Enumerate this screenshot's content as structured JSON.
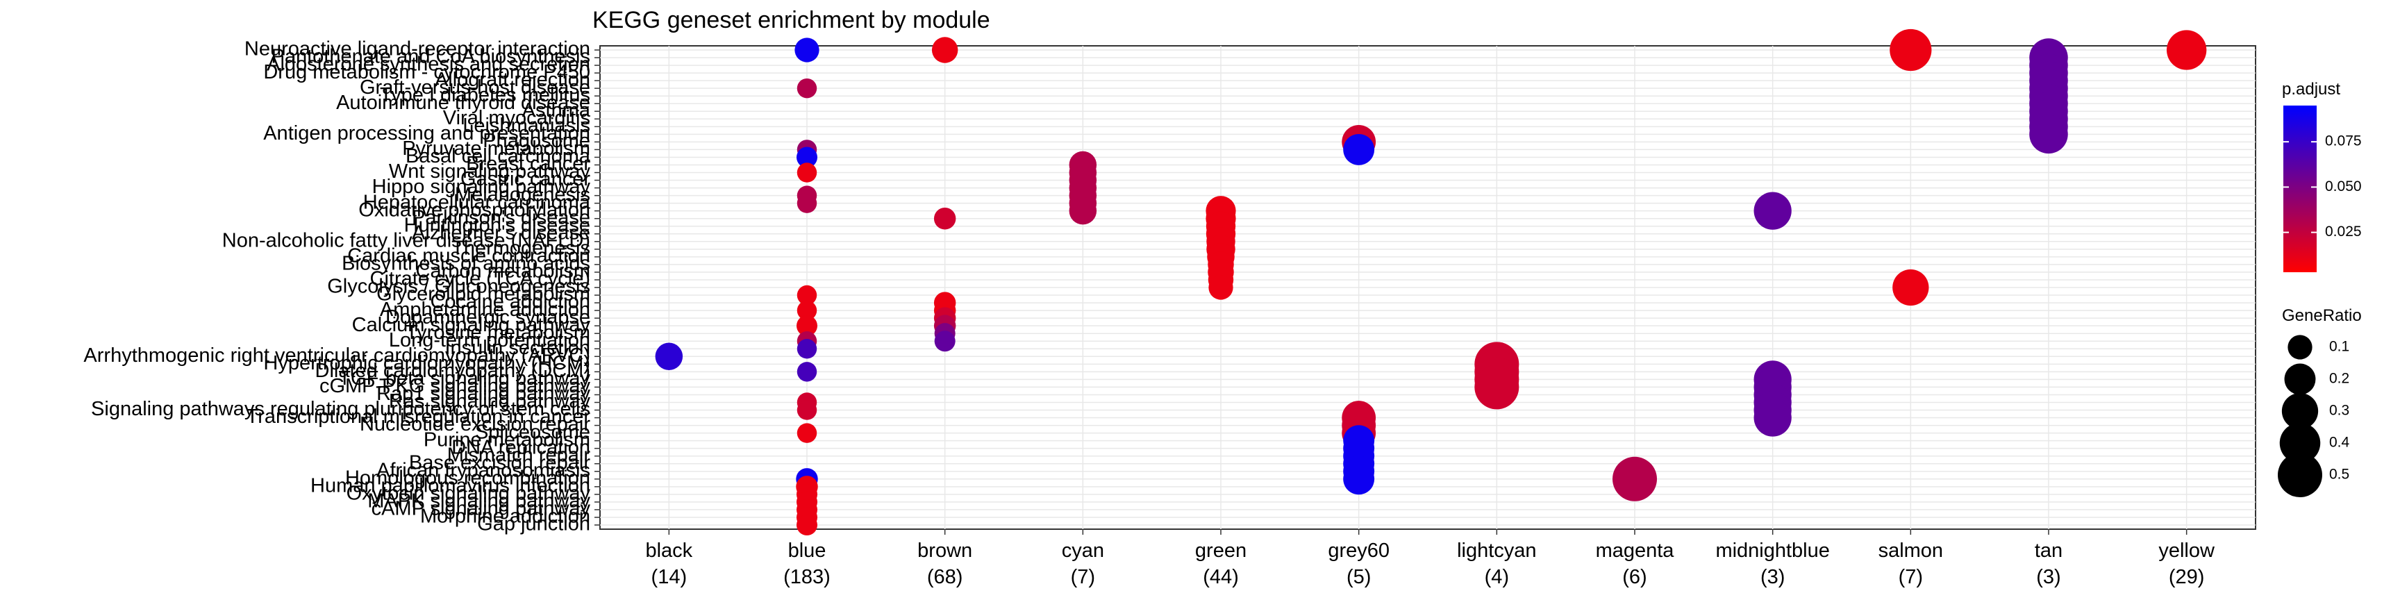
{
  "chart_data": {
    "type": "scatter",
    "title": "KEGG geneset enrichment by module",
    "xlabel": "",
    "ylabel": "",
    "x_categories": [
      {
        "name": "black",
        "count": "(14)"
      },
      {
        "name": "blue",
        "count": "(183)"
      },
      {
        "name": "brown",
        "count": "(68)"
      },
      {
        "name": "cyan",
        "count": "(7)"
      },
      {
        "name": "green",
        "count": "(44)"
      },
      {
        "name": "grey60",
        "count": "(5)"
      },
      {
        "name": "lightcyan",
        "count": "(4)"
      },
      {
        "name": "magenta",
        "count": "(6)"
      },
      {
        "name": "midnightblue",
        "count": "(3)"
      },
      {
        "name": "salmon",
        "count": "(7)"
      },
      {
        "name": "tan",
        "count": "(3)"
      },
      {
        "name": "yellow",
        "count": "(29)"
      }
    ],
    "y_categories": [
      "Neuroactive ligand-receptor interaction",
      "Pantothenate and CoA biosynthesis",
      "Aldosterone synthesis and secretion",
      "Drug metabolism - cytochrome P450",
      "Allograft rejection",
      "Graft-versus-host disease",
      "Type I diabetes mellitus",
      "Autoimmune thyroid disease",
      "Asthma",
      "Viral myocarditis",
      "Leishmaniasis",
      "Antigen processing and presentation",
      "Phagosome",
      "Pyruvate metabolism",
      "Basal cell carcinoma",
      "Breast cancer",
      "Wnt signaling pathway",
      "Gastric cancer",
      "Hippo signaling pathway",
      "Melanogenesis",
      "Hepatocellular carcinoma",
      "Oxidative phosphorylation",
      "Parkinson's disease",
      "Huntington's disease",
      "Alzheimer's disease",
      "Non-alcoholic fatty liver disease (NAFLD)",
      "Thermogenesis",
      "Cardiac muscle contraction",
      "Biosynthesis of amino acids",
      "Carbon metabolism",
      "Citrate cycle (TCA cycle)",
      "Glycolysis / Gluconeogenesis",
      "Glycerolipid metabolism",
      "Cocaine addiction",
      "Amphetamine addiction",
      "Dopaminergic synapse",
      "Calcium signaling pathway",
      "Tyrosine metabolism",
      "Long-term potentiation",
      "Insulin secretion",
      "Arrhythmogenic right ventricular cardiomyopathy (ARVC)",
      "Hypertrophic cardiomyopathy (HCM)",
      "Dilated cardiomyopathy (DCM)",
      "TGF-beta signaling pathway",
      "cGMP-PKG signaling pathway",
      "Rap1 signaling pathway",
      "Ras signaling pathway",
      "Signaling pathways regulating pluripotency of stem cells",
      "Transcriptional misregulation in cancer",
      "Nucleotide excision repair",
      "Spliceosome",
      "Purine metabolism",
      "DNA replication",
      "Mismatch repair",
      "Base excision repair",
      "African trypanosomiasis",
      "Homologous recombination",
      "Human papillomavirus infection",
      "Oxytocin signaling pathway",
      "MAPK signaling pathway",
      "cAMP signaling pathway",
      "Morphine addiction",
      "Gap junction"
    ],
    "points": [
      {
        "module": "blue",
        "term": 0,
        "gene_ratio": 0.1,
        "p_adjust": 0.09
      },
      {
        "module": "blue",
        "term": 5,
        "gene_ratio": 0.05,
        "p_adjust": 0.03
      },
      {
        "module": "blue",
        "term": 13,
        "gene_ratio": 0.05,
        "p_adjust": 0.04
      },
      {
        "module": "blue",
        "term": 14,
        "gene_ratio": 0.06,
        "p_adjust": 0.09
      },
      {
        "module": "blue",
        "term": 16,
        "gene_ratio": 0.05,
        "p_adjust": 0.01
      },
      {
        "module": "blue",
        "term": 19,
        "gene_ratio": 0.05,
        "p_adjust": 0.03
      },
      {
        "module": "blue",
        "term": 20,
        "gene_ratio": 0.05,
        "p_adjust": 0.03
      },
      {
        "module": "blue",
        "term": 32,
        "gene_ratio": 0.05,
        "p_adjust": 0.01
      },
      {
        "module": "blue",
        "term": 34,
        "gene_ratio": 0.05,
        "p_adjust": 0.01
      },
      {
        "module": "blue",
        "term": 36,
        "gene_ratio": 0.06,
        "p_adjust": 0.01
      },
      {
        "module": "blue",
        "term": 38,
        "gene_ratio": 0.05,
        "p_adjust": 0.03
      },
      {
        "module": "blue",
        "term": 39,
        "gene_ratio": 0.05,
        "p_adjust": 0.07
      },
      {
        "module": "blue",
        "term": 42,
        "gene_ratio": 0.05,
        "p_adjust": 0.07
      },
      {
        "module": "blue",
        "term": 46,
        "gene_ratio": 0.05,
        "p_adjust": 0.02
      },
      {
        "module": "blue",
        "term": 47,
        "gene_ratio": 0.05,
        "p_adjust": 0.02
      },
      {
        "module": "blue",
        "term": 50,
        "gene_ratio": 0.05,
        "p_adjust": 0.01
      },
      {
        "module": "blue",
        "term": 56,
        "gene_ratio": 0.07,
        "p_adjust": 0.09
      },
      {
        "module": "blue",
        "term": 57,
        "gene_ratio": 0.07,
        "p_adjust": 0.01
      },
      {
        "module": "blue",
        "term": 58,
        "gene_ratio": 0.06,
        "p_adjust": 0.01
      },
      {
        "module": "blue",
        "term": 59,
        "gene_ratio": 0.06,
        "p_adjust": 0.01
      },
      {
        "module": "blue",
        "term": 60,
        "gene_ratio": 0.06,
        "p_adjust": 0.01
      },
      {
        "module": "blue",
        "term": 61,
        "gene_ratio": 0.06,
        "p_adjust": 0.01
      },
      {
        "module": "blue",
        "term": 62,
        "gene_ratio": 0.06,
        "p_adjust": 0.01
      },
      {
        "module": "black",
        "term": 40,
        "gene_ratio": 0.14,
        "p_adjust": 0.08
      },
      {
        "module": "brown",
        "term": 0,
        "gene_ratio": 0.12,
        "p_adjust": 0.01
      },
      {
        "module": "brown",
        "term": 22,
        "gene_ratio": 0.07,
        "p_adjust": 0.02
      },
      {
        "module": "brown",
        "term": 33,
        "gene_ratio": 0.07,
        "p_adjust": 0.01
      },
      {
        "module": "brown",
        "term": 34,
        "gene_ratio": 0.07,
        "p_adjust": 0.01
      },
      {
        "module": "brown",
        "term": 35,
        "gene_ratio": 0.07,
        "p_adjust": 0.02
      },
      {
        "module": "brown",
        "term": 36,
        "gene_ratio": 0.07,
        "p_adjust": 0.03
      },
      {
        "module": "brown",
        "term": 37,
        "gene_ratio": 0.06,
        "p_adjust": 0.05
      },
      {
        "module": "brown",
        "term": 38,
        "gene_ratio": 0.06,
        "p_adjust": 0.06
      },
      {
        "module": "cyan",
        "term": 15,
        "gene_ratio": 0.14,
        "p_adjust": 0.03
      },
      {
        "module": "cyan",
        "term": 16,
        "gene_ratio": 0.14,
        "p_adjust": 0.03
      },
      {
        "module": "cyan",
        "term": 17,
        "gene_ratio": 0.14,
        "p_adjust": 0.03
      },
      {
        "module": "cyan",
        "term": 18,
        "gene_ratio": 0.14,
        "p_adjust": 0.03
      },
      {
        "module": "cyan",
        "term": 19,
        "gene_ratio": 0.14,
        "p_adjust": 0.03
      },
      {
        "module": "cyan",
        "term": 20,
        "gene_ratio": 0.14,
        "p_adjust": 0.03
      },
      {
        "module": "cyan",
        "term": 21,
        "gene_ratio": 0.14,
        "p_adjust": 0.03
      },
      {
        "module": "green",
        "term": 21,
        "gene_ratio": 0.18,
        "p_adjust": 0.01
      },
      {
        "module": "green",
        "term": 22,
        "gene_ratio": 0.18,
        "p_adjust": 0.01
      },
      {
        "module": "green",
        "term": 23,
        "gene_ratio": 0.17,
        "p_adjust": 0.01
      },
      {
        "module": "green",
        "term": 24,
        "gene_ratio": 0.17,
        "p_adjust": 0.01
      },
      {
        "module": "green",
        "term": 25,
        "gene_ratio": 0.16,
        "p_adjust": 0.01
      },
      {
        "module": "green",
        "term": 26,
        "gene_ratio": 0.16,
        "p_adjust": 0.01
      },
      {
        "module": "green",
        "term": 27,
        "gene_ratio": 0.14,
        "p_adjust": 0.01
      },
      {
        "module": "green",
        "term": 28,
        "gene_ratio": 0.12,
        "p_adjust": 0.01
      },
      {
        "module": "green",
        "term": 29,
        "gene_ratio": 0.12,
        "p_adjust": 0.01
      },
      {
        "module": "green",
        "term": 30,
        "gene_ratio": 0.11,
        "p_adjust": 0.01
      },
      {
        "module": "green",
        "term": 31,
        "gene_ratio": 0.1,
        "p_adjust": 0.01
      },
      {
        "module": "grey60",
        "term": 12,
        "gene_ratio": 0.25,
        "p_adjust": 0.02
      },
      {
        "module": "grey60",
        "term": 13,
        "gene_ratio": 0.2,
        "p_adjust": 0.09
      },
      {
        "module": "grey60",
        "term": 48,
        "gene_ratio": 0.25,
        "p_adjust": 0.02
      },
      {
        "module": "grey60",
        "term": 49,
        "gene_ratio": 0.25,
        "p_adjust": 0.02
      },
      {
        "module": "grey60",
        "term": 50,
        "gene_ratio": 0.25,
        "p_adjust": 0.02
      },
      {
        "module": "grey60",
        "term": 51,
        "gene_ratio": 0.2,
        "p_adjust": 0.09
      },
      {
        "module": "grey60",
        "term": 52,
        "gene_ratio": 0.2,
        "p_adjust": 0.09
      },
      {
        "module": "grey60",
        "term": 53,
        "gene_ratio": 0.2,
        "p_adjust": 0.09
      },
      {
        "module": "grey60",
        "term": 54,
        "gene_ratio": 0.2,
        "p_adjust": 0.09
      },
      {
        "module": "grey60",
        "term": 55,
        "gene_ratio": 0.2,
        "p_adjust": 0.09
      },
      {
        "module": "grey60",
        "term": 56,
        "gene_ratio": 0.2,
        "p_adjust": 0.09
      },
      {
        "module": "lightcyan",
        "term": 41,
        "gene_ratio": 0.5,
        "p_adjust": 0.02
      },
      {
        "module": "lightcyan",
        "term": 42,
        "gene_ratio": 0.5,
        "p_adjust": 0.02
      },
      {
        "module": "lightcyan",
        "term": 43,
        "gene_ratio": 0.5,
        "p_adjust": 0.02
      },
      {
        "module": "lightcyan",
        "term": 44,
        "gene_ratio": 0.5,
        "p_adjust": 0.02
      },
      {
        "module": "magenta",
        "term": 56,
        "gene_ratio": 0.5,
        "p_adjust": 0.03
      },
      {
        "module": "midnightblue",
        "term": 21,
        "gene_ratio": 0.33,
        "p_adjust": 0.06
      },
      {
        "module": "midnightblue",
        "term": 43,
        "gene_ratio": 0.33,
        "p_adjust": 0.06
      },
      {
        "module": "midnightblue",
        "term": 44,
        "gene_ratio": 0.33,
        "p_adjust": 0.06
      },
      {
        "module": "midnightblue",
        "term": 45,
        "gene_ratio": 0.33,
        "p_adjust": 0.06
      },
      {
        "module": "midnightblue",
        "term": 46,
        "gene_ratio": 0.33,
        "p_adjust": 0.06
      },
      {
        "module": "midnightblue",
        "term": 47,
        "gene_ratio": 0.33,
        "p_adjust": 0.06
      },
      {
        "module": "midnightblue",
        "term": 48,
        "gene_ratio": 0.33,
        "p_adjust": 0.06
      },
      {
        "module": "salmon",
        "term": 0,
        "gene_ratio": 0.43,
        "p_adjust": 0.01
      },
      {
        "module": "salmon",
        "term": 31,
        "gene_ratio": 0.3,
        "p_adjust": 0.01
      },
      {
        "module": "tan",
        "term": 1,
        "gene_ratio": 0.35,
        "p_adjust": 0.06
      },
      {
        "module": "tan",
        "term": 2,
        "gene_ratio": 0.35,
        "p_adjust": 0.06
      },
      {
        "module": "tan",
        "term": 3,
        "gene_ratio": 0.35,
        "p_adjust": 0.06
      },
      {
        "module": "tan",
        "term": 4,
        "gene_ratio": 0.35,
        "p_adjust": 0.06
      },
      {
        "module": "tan",
        "term": 5,
        "gene_ratio": 0.35,
        "p_adjust": 0.06
      },
      {
        "module": "tan",
        "term": 6,
        "gene_ratio": 0.35,
        "p_adjust": 0.06
      },
      {
        "module": "tan",
        "term": 7,
        "gene_ratio": 0.35,
        "p_adjust": 0.06
      },
      {
        "module": "tan",
        "term": 8,
        "gene_ratio": 0.35,
        "p_adjust": 0.06
      },
      {
        "module": "tan",
        "term": 9,
        "gene_ratio": 0.35,
        "p_adjust": 0.06
      },
      {
        "module": "tan",
        "term": 10,
        "gene_ratio": 0.35,
        "p_adjust": 0.06
      },
      {
        "module": "tan",
        "term": 11,
        "gene_ratio": 0.35,
        "p_adjust": 0.06
      },
      {
        "module": "yellow",
        "term": 0,
        "gene_ratio": 0.38,
        "p_adjust": 0.01
      }
    ],
    "legend_color": {
      "title": "p.adjust",
      "min": 0.003,
      "max": 0.095,
      "ticks": [
        {
          "value": 0.025,
          "label": "0.025"
        },
        {
          "value": 0.05,
          "label": "0.050"
        },
        {
          "value": 0.075,
          "label": "0.075"
        }
      ],
      "low_color": "#ff0000",
      "high_color": "#0000ff"
    },
    "legend_size": {
      "title": "GeneRatio",
      "entries": [
        {
          "value": 0.1,
          "label": "0.1"
        },
        {
          "value": 0.2,
          "label": "0.2"
        },
        {
          "value": 0.3,
          "label": "0.3"
        },
        {
          "value": 0.4,
          "label": "0.4"
        },
        {
          "value": 0.5,
          "label": "0.5"
        }
      ]
    },
    "grid": true,
    "legend_position": "right"
  }
}
